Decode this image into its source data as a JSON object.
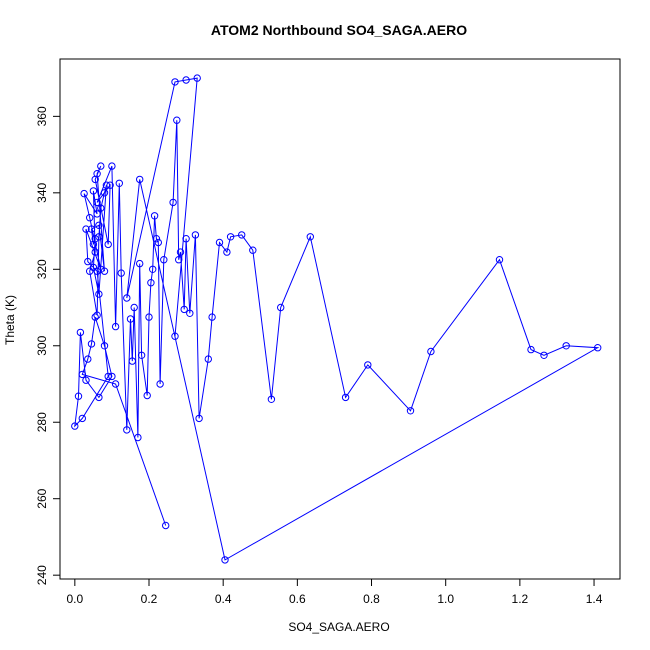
{
  "chart_data": {
    "type": "line",
    "title": "ATOM2 Northbound SO4_SAGA.AERO",
    "xlabel": "SO4_SAGA.AERO",
    "ylabel": "Theta (K)",
    "xlim": [
      -0.04,
      1.47
    ],
    "ylim": [
      239,
      375
    ],
    "xticks": [
      0.0,
      0.2,
      0.4,
      0.6,
      0.8,
      1.0,
      1.2,
      1.4
    ],
    "xtick_labels": [
      "0.0",
      "0.2",
      "0.4",
      "0.6",
      "0.8",
      "1.0",
      "1.2",
      "1.4"
    ],
    "yticks": [
      240,
      260,
      280,
      300,
      320,
      340,
      360
    ],
    "ytick_labels": [
      "240",
      "260",
      "280",
      "300",
      "320",
      "340",
      "360"
    ],
    "grid": false,
    "legend": "none",
    "line_color": "#0000ff",
    "marker": "open-circle",
    "series": [
      {
        "x": [
          0.245,
          0.11,
          0.02,
          0.035,
          0.045,
          0.055,
          0.08,
          0.1,
          0.065,
          0.03,
          0.015,
          0.01,
          0.0,
          0.02,
          0.09,
          0.06,
          0.035,
          0.03,
          0.07,
          0.04,
          0.025,
          0.06,
          0.05,
          0.055,
          0.04,
          0.06,
          0.065,
          0.07,
          0.08,
          0.085,
          0.065,
          0.05,
          0.055,
          0.05,
          0.045,
          0.065,
          0.08,
          0.06,
          0.07,
          0.055,
          0.09,
          0.095,
          0.06,
          0.1,
          0.11,
          0.12,
          0.125,
          0.14,
          0.15,
          0.155,
          0.16,
          0.17,
          0.175,
          0.18,
          0.195,
          0.2,
          0.205,
          0.21,
          0.215,
          0.22,
          0.225,
          0.23,
          0.24,
          0.265,
          0.275,
          0.28,
          0.285,
          0.295,
          0.3,
          0.31,
          0.325,
          0.335,
          0.36,
          0.37,
          0.39,
          0.41,
          0.42,
          0.45,
          0.48,
          0.53,
          0.555,
          0.635,
          0.73,
          0.79,
          0.905,
          0.96,
          1.145,
          1.23,
          1.265,
          1.325,
          1.41,
          0.405,
          0.175,
          0.14,
          0.27,
          0.3,
          0.33,
          0.27
        ],
        "y": [
          253,
          290,
          292.5,
          296.5,
          300.5,
          307.5,
          300,
          292,
          286.5,
          291,
          303.5,
          286.8,
          279,
          281,
          292,
          319.5,
          322,
          330.5,
          320,
          333.5,
          339.8,
          334.5,
          340.5,
          324.5,
          319.5,
          308,
          328.5,
          336,
          340,
          342,
          313.5,
          320.5,
          328,
          326.5,
          330.5,
          331.5,
          319.5,
          345,
          347,
          343.5,
          326.5,
          342,
          337.5,
          347,
          305,
          342.5,
          319,
          278,
          307,
          296,
          310,
          276,
          321.5,
          297.5,
          287,
          307.5,
          316.5,
          320,
          334,
          328,
          327,
          290,
          322.5,
          337.5,
          359,
          322.5,
          324.5,
          309.5,
          328,
          308.5,
          329,
          281,
          296.5,
          307.5,
          327,
          324.5,
          328.5,
          329,
          325,
          286,
          310,
          328.5,
          286.5,
          295,
          283,
          298.5,
          322.5,
          299,
          297.5,
          300,
          299.5,
          244,
          343.5,
          312.5,
          369,
          369.5,
          370,
          302.5
        ]
      }
    ]
  }
}
